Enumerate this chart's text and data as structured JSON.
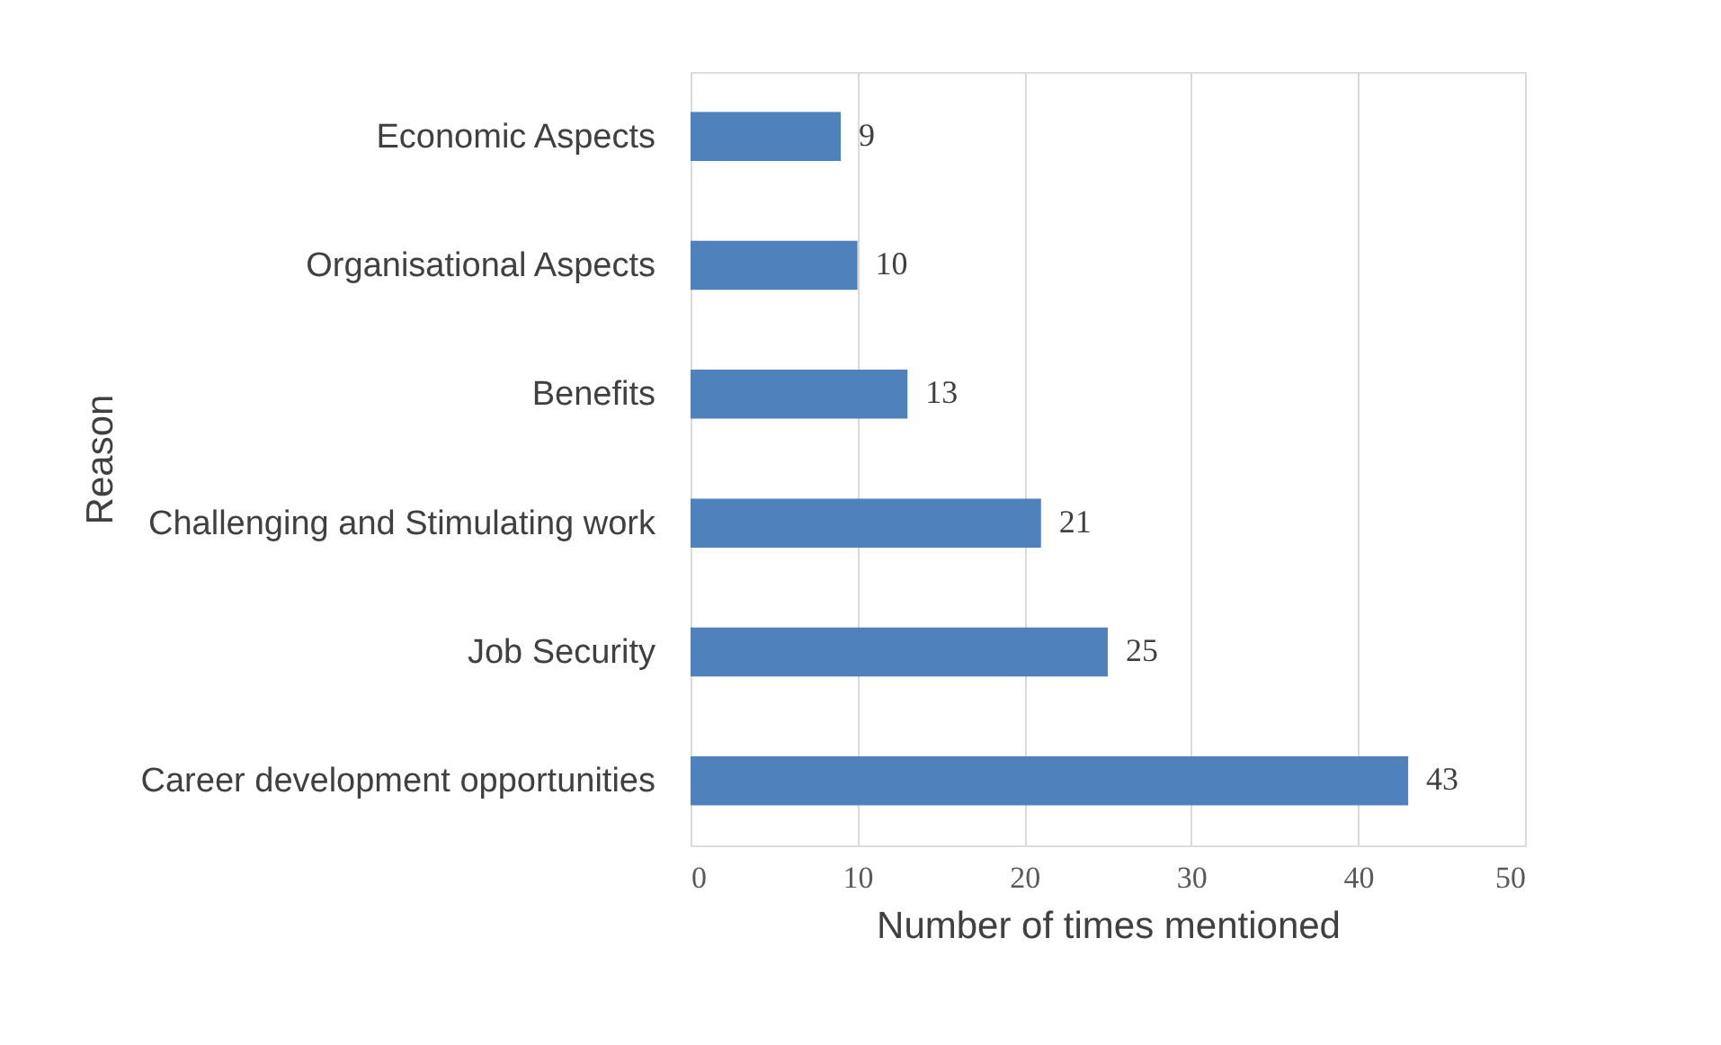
{
  "chart_data": {
    "type": "bar",
    "orientation": "horizontal",
    "xlabel": "Number of times mentioned",
    "ylabel": "Reason",
    "categories": [
      "Economic Aspects",
      "Organisational Aspects",
      "Benefits",
      "Challenging and Stimulating work",
      "Job Security",
      "Career development opportunities"
    ],
    "values": [
      9,
      10,
      13,
      21,
      25,
      43
    ],
    "color": "#4f81bd",
    "xlim": [
      0,
      50
    ],
    "xticks": [
      0,
      10,
      20,
      30,
      40,
      50
    ],
    "grid": "x",
    "data_labels": true
  }
}
